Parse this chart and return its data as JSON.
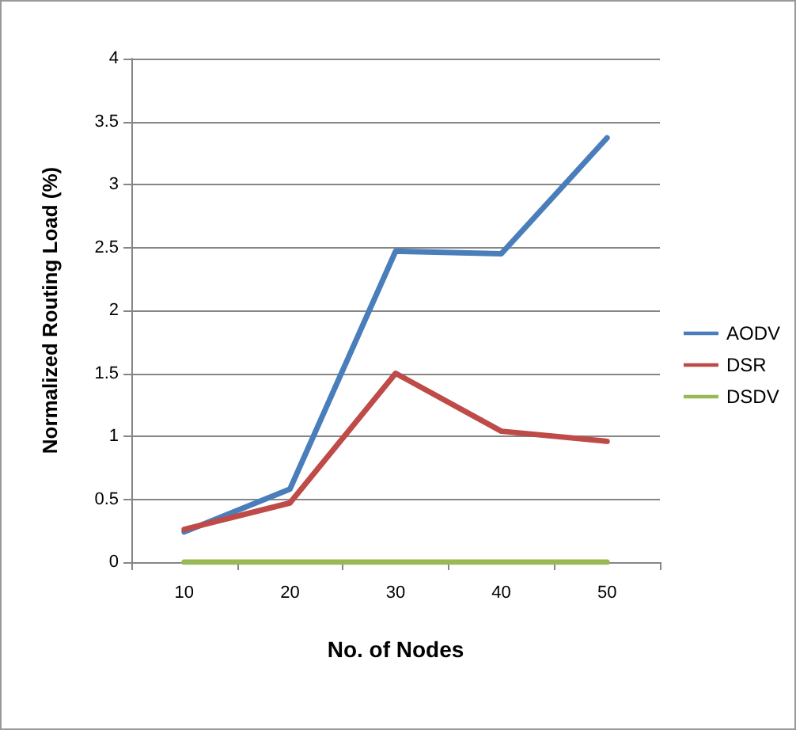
{
  "chart_data": {
    "type": "line",
    "xlabel": "No. of Nodes",
    "ylabel": "Normalized Routing Load (%)",
    "categories": [
      "10",
      "20",
      "30",
      "40",
      "50"
    ],
    "series": [
      {
        "name": "AODV",
        "color": "#4a7ebb",
        "values": [
          0.24,
          0.58,
          2.47,
          2.45,
          3.37
        ]
      },
      {
        "name": "DSR",
        "color": "#be4b48",
        "values": [
          0.26,
          0.47,
          1.5,
          1.04,
          0.96
        ]
      },
      {
        "name": "DSDV",
        "color": "#98b954",
        "values": [
          0,
          0,
          0,
          0,
          0
        ]
      }
    ],
    "ylim": [
      0,
      4
    ],
    "yticks": [
      0,
      0.5,
      1,
      1.5,
      2,
      2.5,
      3,
      3.5,
      4
    ],
    "grid": "y",
    "legend": "right",
    "marker": "none",
    "line_style": "solid"
  }
}
